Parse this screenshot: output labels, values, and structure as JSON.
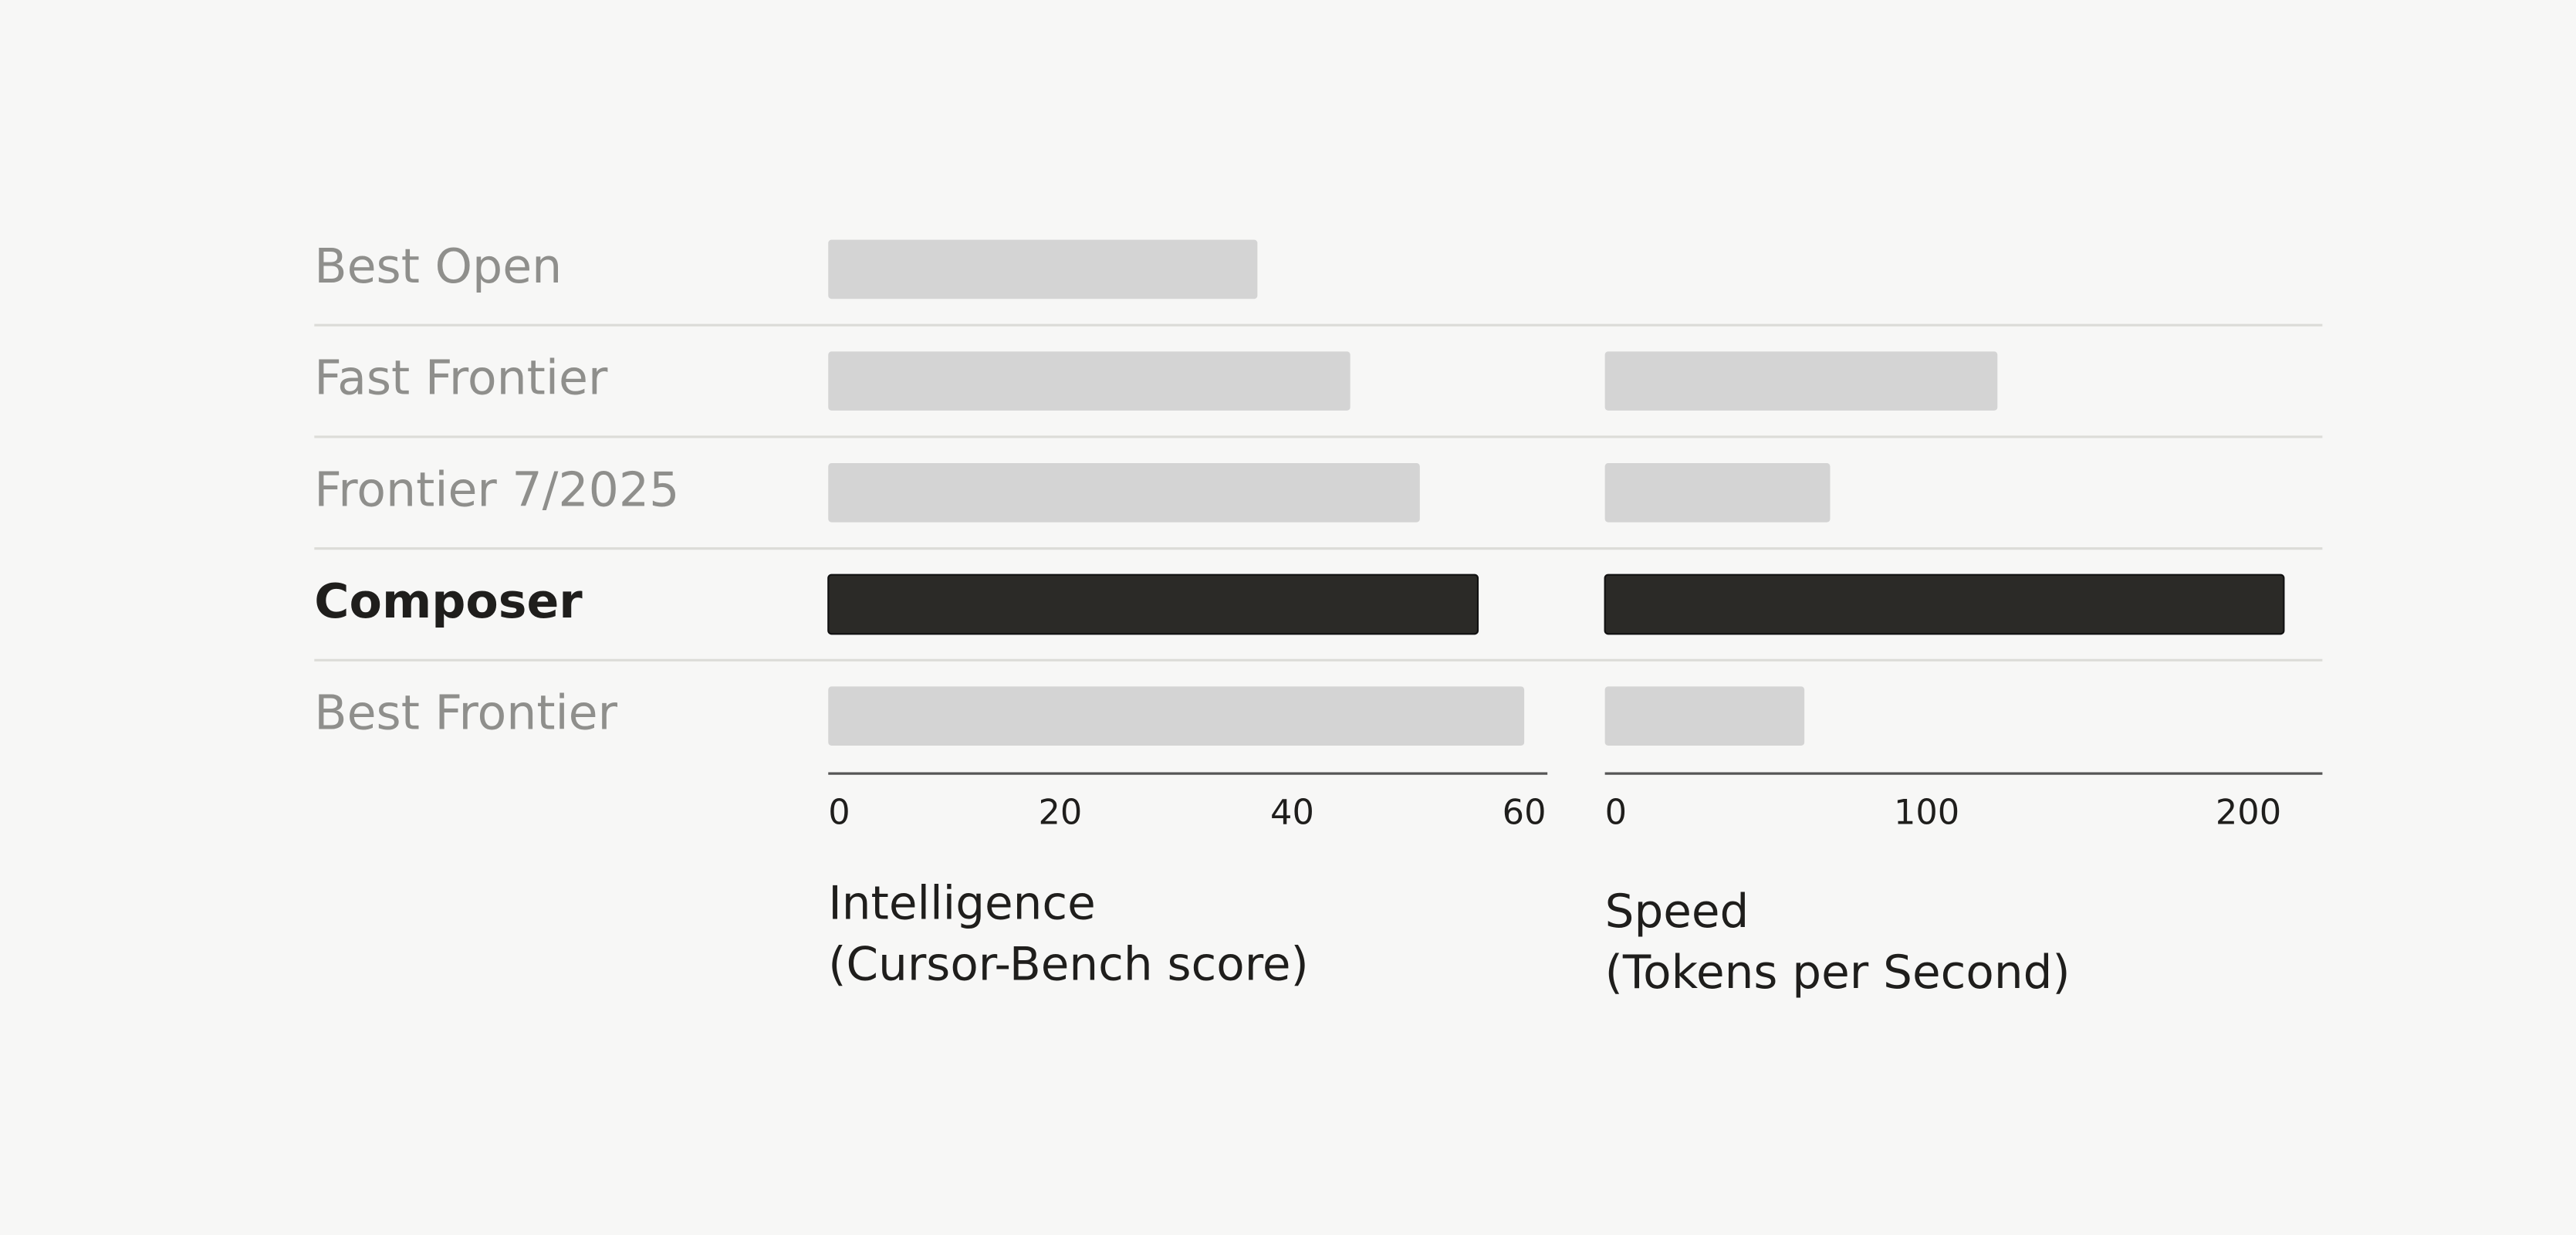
{
  "chart_data": [
    {
      "type": "bar",
      "orientation": "horizontal",
      "categories": [
        "Best Open",
        "Fast Frontier",
        "Frontier 7/2025",
        "Composer",
        "Best Frontier"
      ],
      "values": [
        37,
        45,
        51,
        56,
        60
      ],
      "colors": [
        "#d4d4d4",
        "#d4d4d4",
        "#d4d4d4",
        "#2b2a27",
        "#d4d4d4"
      ],
      "highlight_color": "#2b2a27",
      "xlim": [
        0,
        62
      ],
      "xticks": [
        0,
        20,
        40,
        60
      ],
      "xlabel": [
        "Intelligence",
        "(Cursor-Bench score)"
      ]
    },
    {
      "type": "bar",
      "orientation": "horizontal",
      "values": [
        null,
        122,
        70,
        211,
        62
      ],
      "colors": [
        "#d4d4d4",
        "#d4d4d4",
        "#d4d4d4",
        "#2b2a27",
        "#d4d4d4"
      ],
      "xlim": [
        0,
        223
      ],
      "xticks": [
        0,
        100,
        200
      ],
      "xlabel": [
        "Speed",
        "(Tokens per Second)"
      ]
    }
  ]
}
